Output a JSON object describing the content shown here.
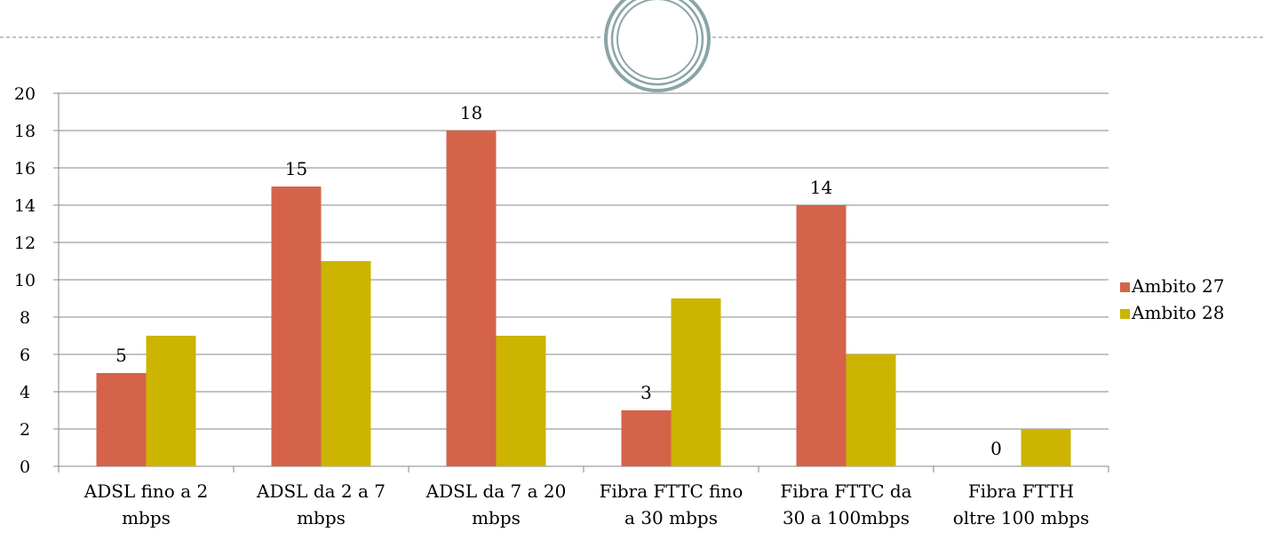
{
  "chart_data": {
    "type": "bar",
    "categories": [
      "ADSL fino a 2 mbps",
      "ADSL da 2 a 7 mbps",
      "ADSL da 7 a 20 mbps",
      "Fibra FTTC fino a 30 mbps",
      "Fibra FTTC da 30 a 100mbps",
      "Fibra FTTH oltre 100 mbps"
    ],
    "category_lines": [
      [
        "ADSL fino a 2",
        "mbps"
      ],
      [
        "ADSL da 2 a 7",
        "mbps"
      ],
      [
        "ADSL da 7 a 20",
        "mbps"
      ],
      [
        "Fibra FTTC fino",
        "a 30 mbps"
      ],
      [
        "Fibra FTTC da",
        "30 a 100mbps"
      ],
      [
        "Fibra FTTH",
        "oltre 100 mbps"
      ]
    ],
    "series": [
      {
        "name": "Ambito 27",
        "values": [
          5,
          15,
          18,
          3,
          14,
          0
        ],
        "color": "#D4634A",
        "data_labels": true
      },
      {
        "name": "Ambito 28",
        "values": [
          7,
          11,
          7,
          9,
          6,
          2
        ],
        "color": "#CCB400",
        "data_labels": false
      }
    ],
    "ylim": [
      0,
      20
    ],
    "yticks": [
      0,
      2,
      4,
      6,
      8,
      10,
      12,
      14,
      16,
      18,
      20
    ],
    "grid": true,
    "legend_position": "right",
    "title": "",
    "xlabel": "",
    "ylabel": ""
  },
  "theme": {
    "header_line_color": "#8BA5A5",
    "ring_color": "#8BA5A5",
    "grid_color": "#878787"
  }
}
